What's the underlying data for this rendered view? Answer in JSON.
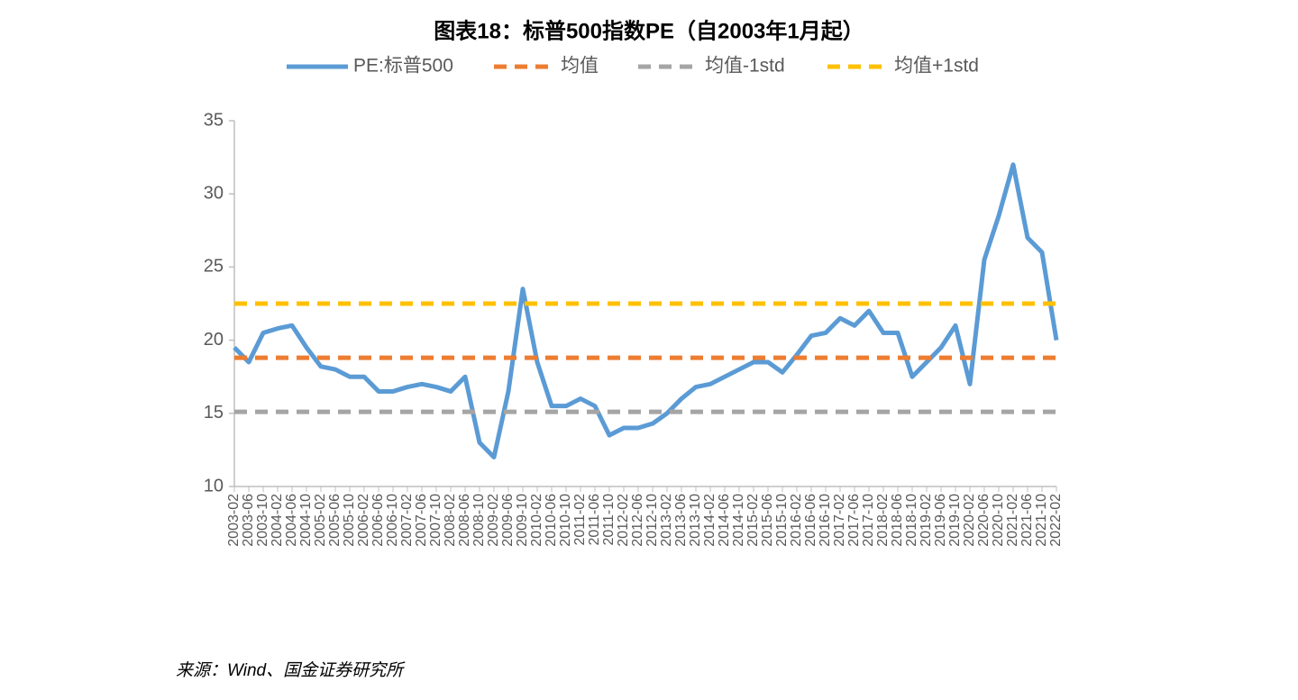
{
  "chart_data": {
    "type": "line",
    "title": "图表18：标普500指数PE（自2003年1月起）",
    "source": "来源：Wind、国金证券研究所",
    "categories": [
      "2003-02",
      "2003-06",
      "2003-10",
      "2004-02",
      "2004-06",
      "2004-10",
      "2005-02",
      "2005-06",
      "2005-10",
      "2006-02",
      "2006-06",
      "2006-10",
      "2007-02",
      "2007-06",
      "2007-10",
      "2008-02",
      "2008-06",
      "2008-10",
      "2009-02",
      "2009-06",
      "2009-10",
      "2010-02",
      "2010-06",
      "2010-10",
      "2011-02",
      "2011-06",
      "2011-10",
      "2012-02",
      "2012-06",
      "2012-10",
      "2013-02",
      "2013-06",
      "2013-10",
      "2014-02",
      "2014-06",
      "2014-10",
      "2015-02",
      "2015-06",
      "2015-10",
      "2016-02",
      "2016-06",
      "2016-10",
      "2017-02",
      "2017-06",
      "2017-10",
      "2018-02",
      "2018-06",
      "2018-10",
      "2019-02",
      "2019-06",
      "2019-10",
      "2020-02",
      "2020-06",
      "2020-10",
      "2021-02",
      "2021-06",
      "2021-10",
      "2022-02"
    ],
    "series": [
      {
        "name": "PE:标普500",
        "color": "#5b9bd5",
        "values": [
          19.5,
          18.5,
          20.5,
          20.8,
          21.0,
          19.5,
          18.2,
          18.0,
          17.5,
          17.5,
          16.5,
          16.5,
          16.8,
          17.0,
          16.8,
          16.5,
          17.5,
          13.0,
          12.0,
          16.5,
          23.5,
          18.5,
          15.5,
          15.5,
          16.0,
          15.5,
          13.5,
          14.0,
          14.0,
          14.3,
          15.0,
          16.0,
          16.8,
          17.0,
          17.5,
          18.0,
          18.5,
          18.5,
          17.8,
          19.0,
          20.3,
          20.5,
          21.5,
          21.0,
          22.0,
          20.5,
          20.5,
          17.5,
          18.5,
          19.5,
          21.0,
          17.0,
          25.5,
          28.5,
          32.0,
          27.0,
          26.0,
          20.0
        ]
      },
      {
        "name": "均值",
        "color": "#ed7d31",
        "dashed": true,
        "value": 18.8
      },
      {
        "name": "均值-1std",
        "color": "#a5a5a5",
        "dashed": true,
        "value": 15.1
      },
      {
        "name": "均值+1std",
        "color": "#ffc000",
        "dashed": true,
        "value": 22.5
      }
    ],
    "ylim": [
      10,
      35
    ],
    "yticks": [
      10,
      15,
      20,
      25,
      30,
      35
    ]
  }
}
